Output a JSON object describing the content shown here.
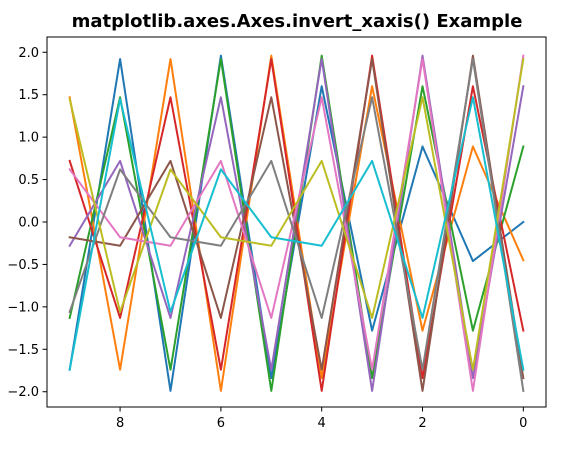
{
  "chart_data": {
    "type": "line",
    "title": "matplotlib.axes.Axes.invert_xaxis() Example",
    "xlabel": "",
    "ylabel": "",
    "x": [
      0,
      1,
      2,
      3,
      4,
      5,
      6,
      7,
      8,
      9
    ],
    "xlim": [
      9.45,
      -0.45
    ],
    "ylim": [
      -2.18,
      2.18
    ],
    "x_inverted": true,
    "x_ticks": [
      8,
      6,
      4,
      2,
      0
    ],
    "x_tick_labels": [
      "8",
      "6",
      "4",
      "2",
      "0"
    ],
    "y_ticks": [
      2.0,
      1.5,
      1.0,
      0.5,
      0.0,
      -0.5,
      -1.0,
      -1.5,
      -2.0
    ],
    "y_tick_labels": [
      "2.0",
      "1.5",
      "1.0",
      "0.5",
      "0.0",
      "−0.5",
      "−1.0",
      "−1.5",
      "−2.0"
    ],
    "grid": false,
    "legend": "none",
    "series": [
      {
        "color": "#1f77b4",
        "values": [
          0.0,
          -0.46,
          0.89,
          -1.28,
          1.6,
          -1.84,
          1.96,
          -1.99,
          1.92,
          -1.74
        ]
      },
      {
        "color": "#ff7f0e",
        "values": [
          -0.45,
          0.89,
          -1.28,
          1.6,
          -1.84,
          1.96,
          -1.99,
          1.92,
          -1.74,
          1.47
        ]
      },
      {
        "color": "#2ca02c",
        "values": [
          0.89,
          -1.28,
          1.6,
          -1.84,
          1.96,
          -1.99,
          1.92,
          -1.74,
          1.47,
          -1.13
        ]
      },
      {
        "color": "#d62728",
        "values": [
          -1.28,
          1.6,
          -1.84,
          1.96,
          -1.99,
          1.92,
          -1.74,
          1.47,
          -1.13,
          0.72
        ]
      },
      {
        "color": "#9467bd",
        "values": [
          1.6,
          -1.84,
          1.96,
          -1.99,
          1.92,
          -1.74,
          1.47,
          -1.13,
          0.72,
          -0.28
        ]
      },
      {
        "color": "#8c564b",
        "values": [
          -1.84,
          1.96,
          -1.99,
          1.92,
          -1.74,
          1.47,
          -1.13,
          0.72,
          -0.28,
          -0.18
        ]
      },
      {
        "color": "#e377c2",
        "values": [
          1.96,
          -1.99,
          1.92,
          -1.74,
          1.47,
          -1.13,
          0.72,
          -0.28,
          -0.18,
          0.62
        ]
      },
      {
        "color": "#7f7f7f",
        "values": [
          -1.99,
          1.92,
          -1.74,
          1.47,
          -1.13,
          0.72,
          -0.28,
          -0.18,
          0.62,
          -1.06
        ]
      },
      {
        "color": "#bcbd22",
        "values": [
          1.92,
          -1.74,
          1.47,
          -1.13,
          0.72,
          -0.28,
          -0.18,
          0.62,
          -1.06,
          1.45
        ]
      },
      {
        "color": "#17becf",
        "values": [
          -1.74,
          1.47,
          -1.13,
          0.72,
          -0.28,
          -0.18,
          0.62,
          -1.06,
          1.45,
          -1.74
        ]
      }
    ]
  }
}
